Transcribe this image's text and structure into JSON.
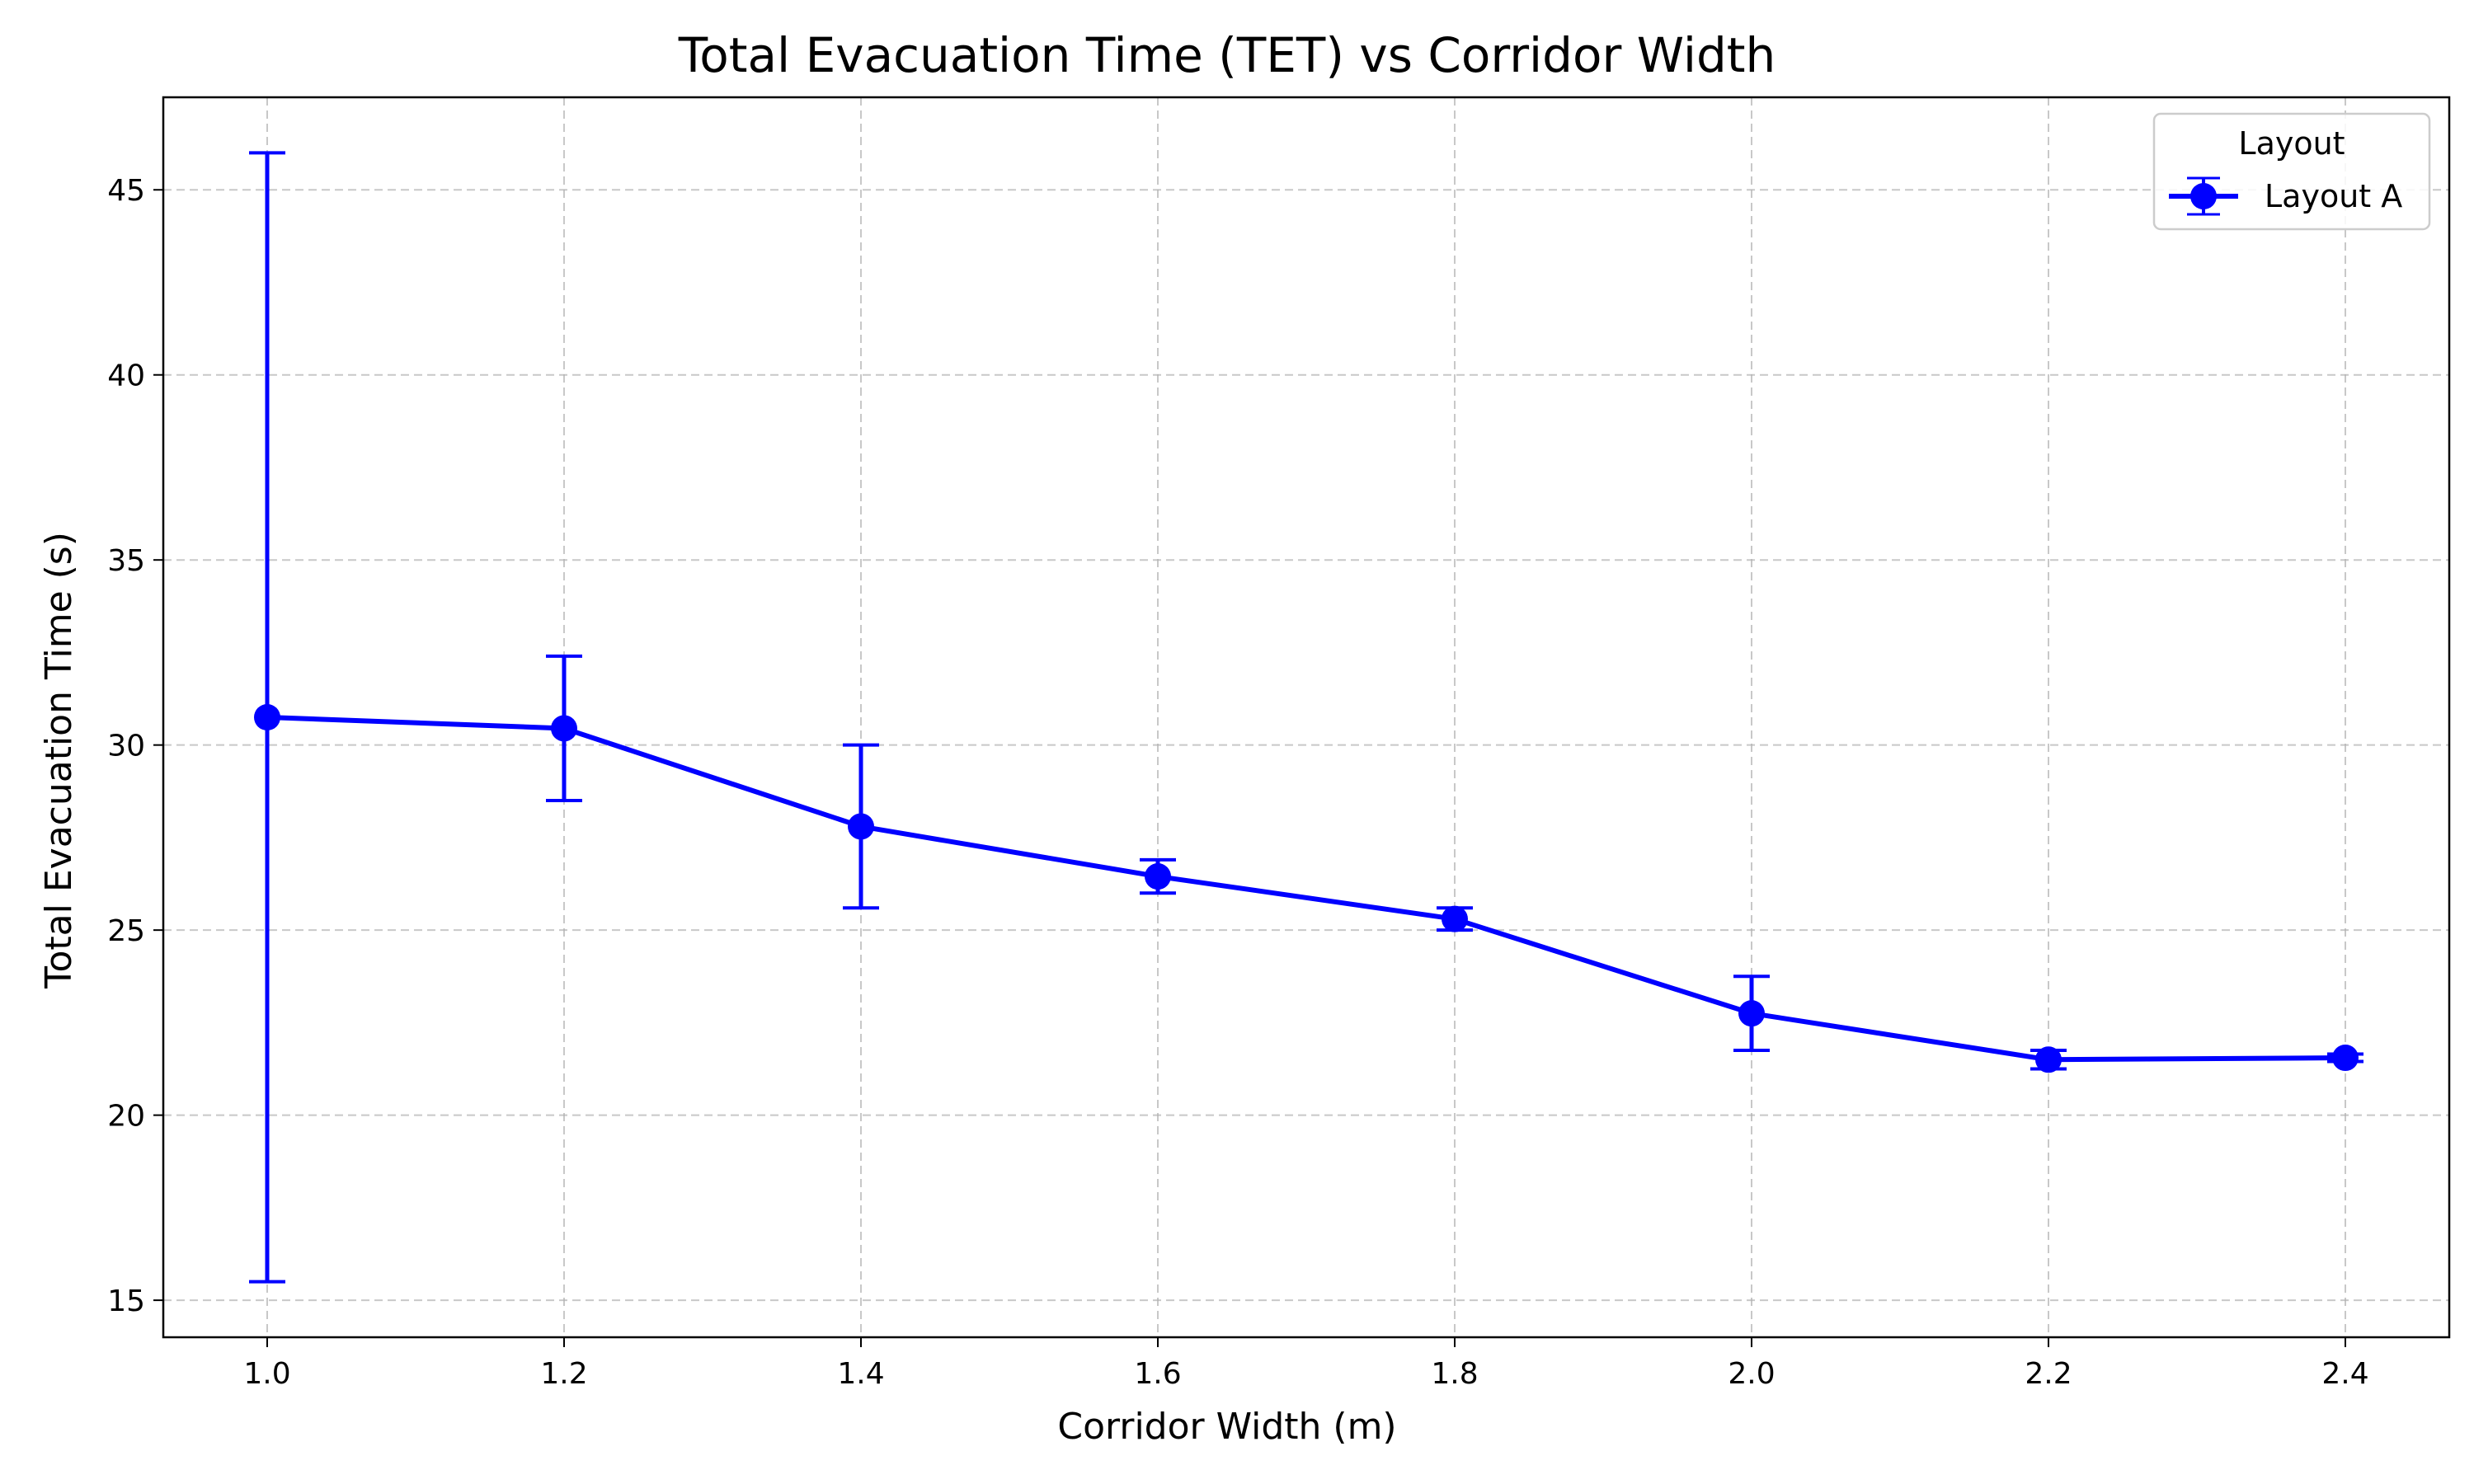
{
  "chart_data": {
    "type": "line",
    "title": "Total Evacuation Time (TET) vs Corridor Width",
    "xlabel": "Corridor Width (m)",
    "ylabel": "Total Evacuation Time (s)",
    "xlim": [
      0.93,
      2.47
    ],
    "ylim": [
      14.0,
      47.5
    ],
    "xticks": [
      1.0,
      1.2,
      1.4,
      1.6,
      1.8,
      2.0,
      2.2,
      2.4
    ],
    "xtick_labels": [
      "1.0",
      "1.2",
      "1.4",
      "1.6",
      "1.8",
      "2.0",
      "2.2",
      "2.4"
    ],
    "yticks": [
      15,
      20,
      25,
      30,
      35,
      40,
      45
    ],
    "ytick_labels": [
      "15",
      "20",
      "25",
      "30",
      "35",
      "40",
      "45"
    ],
    "grid": true,
    "legend": {
      "title": "Layout",
      "position": "top-right"
    },
    "series": [
      {
        "name": "Layout A",
        "color": "#0000ff",
        "marker": "circle",
        "points": [
          {
            "x": 1.0,
            "y": 30.75,
            "err": 15.25
          },
          {
            "x": 1.2,
            "y": 30.45,
            "err": 1.95
          },
          {
            "x": 1.4,
            "y": 27.8,
            "err": 2.2
          },
          {
            "x": 1.6,
            "y": 26.45,
            "err": 0.45
          },
          {
            "x": 1.8,
            "y": 25.3,
            "err": 0.3
          },
          {
            "x": 2.0,
            "y": 22.75,
            "err": 1.0
          },
          {
            "x": 2.2,
            "y": 21.5,
            "err": 0.25
          },
          {
            "x": 2.4,
            "y": 21.55,
            "err": 0.1
          }
        ]
      }
    ]
  }
}
